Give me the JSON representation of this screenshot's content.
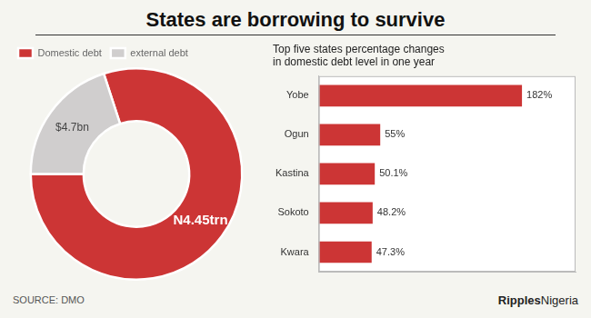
{
  "title": "States are borrowing to survive",
  "annotations": [
    "SOURCE: DMO",
    "Ripples",
    "Nigeria"
  ],
  "chart_data": [
    {
      "type": "doughnut",
      "categories": [
        "Domestic debt",
        "external debt"
      ],
      "values": [
        80,
        20
      ],
      "colors": [
        "#cc3535",
        "#d0cece"
      ],
      "annotations": [
        "N4.45trn",
        "$4.7bn"
      ],
      "legend": "upper left"
    },
    {
      "type": "bar",
      "orientation": "horizontal",
      "title": [
        "Top five states percentage changes",
        "in domestic debt level in one year"
      ],
      "categories": [
        "Yobe",
        "Ogun",
        "Kastina",
        "Sokoto",
        "Kwara"
      ],
      "values": [
        182,
        55,
        50.1,
        48.2,
        47.3
      ],
      "value_labels": [
        "182%",
        "55%",
        "50.1%",
        "48.2%",
        "47.3%"
      ],
      "data_labels": true,
      "color": "#cc3535",
      "xlim": [
        0,
        230
      ],
      "tick_labels": "y",
      "grid": false
    }
  ]
}
